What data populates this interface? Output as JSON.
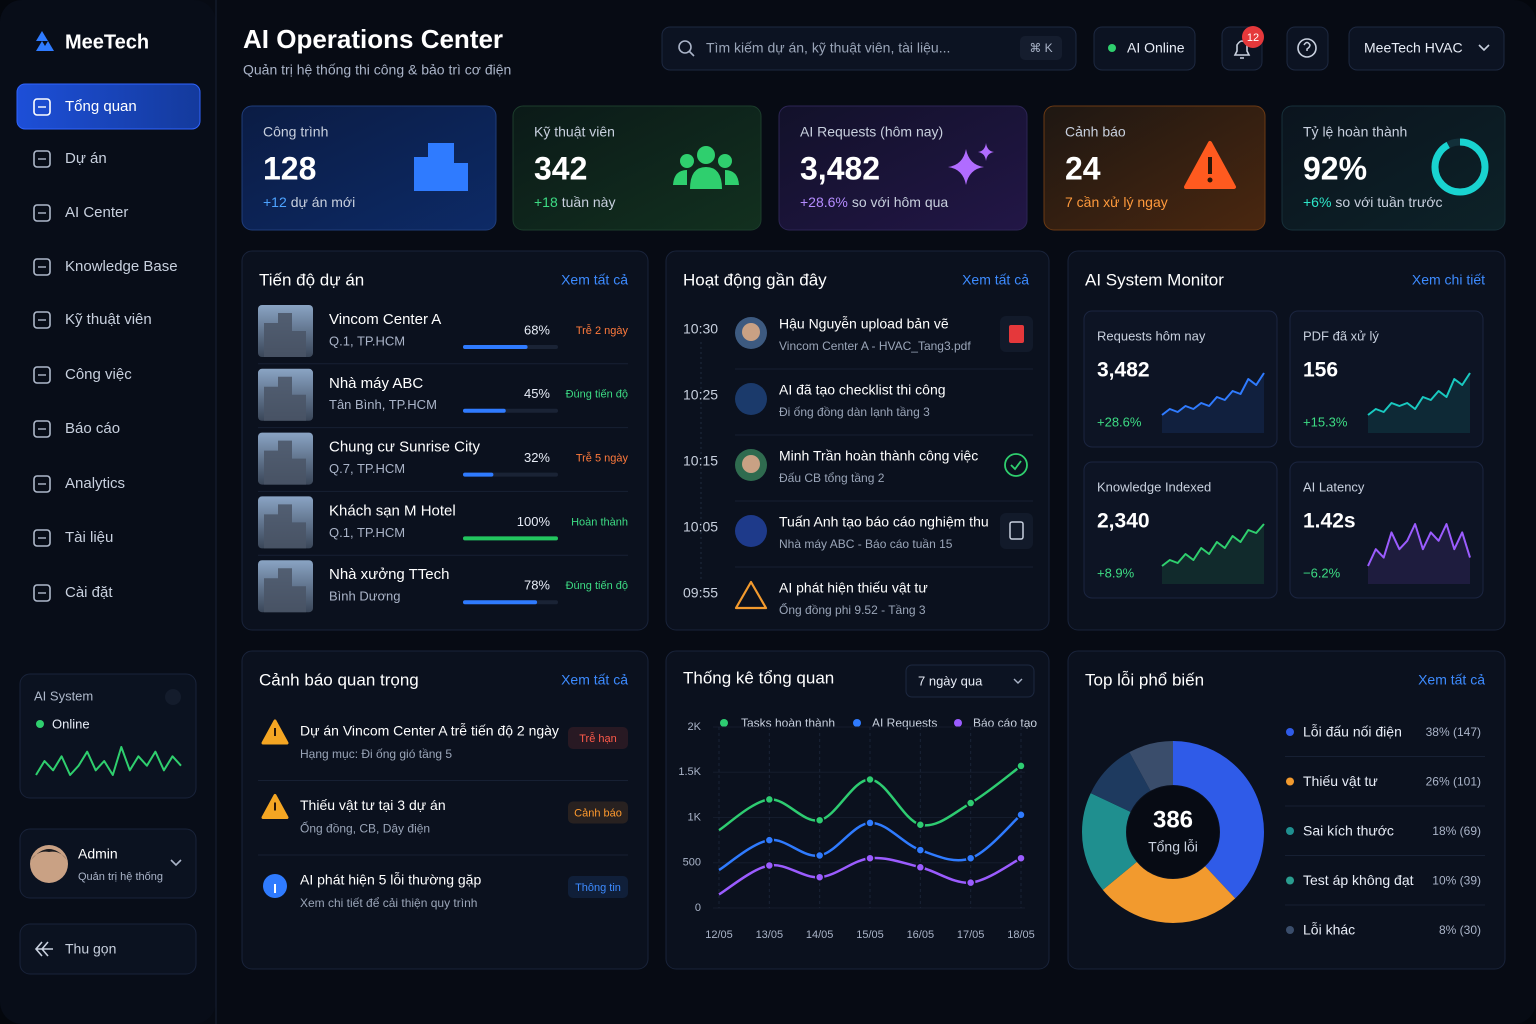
{
  "sidebar": {
    "brand": "MeeTech",
    "nav": [
      "Tổng quan",
      "Dự án",
      "AI Center",
      "Knowledge Base",
      "Kỹ thuật viên",
      "Công việc",
      "Báo cáo",
      "Analytics",
      "Tài liệu",
      "Cài đặt"
    ],
    "ai_system": {
      "title": "AI System",
      "status": "Online",
      "color": "#2fcf6e",
      "trend": [
        3,
        6,
        4,
        7,
        3,
        5,
        8,
        4,
        6,
        3,
        9,
        4,
        7,
        5,
        8,
        4,
        7,
        5
      ]
    },
    "user": {
      "name": "Admin",
      "role": "Quản trị hệ thống"
    },
    "collapse": "Thu gọn"
  },
  "header": {
    "title": "AI Operations Center",
    "subtitle": "Quản trị hệ thống thi công & bảo trì cơ điện",
    "search": "Tìm kiếm dự án, kỹ thuật viên, tài liệu...",
    "shortcut": "⌘ K",
    "ai_status": "AI Online",
    "notifications": "12",
    "account": "MeeTech HVAC"
  },
  "kpis": [
    {
      "label": "Công trình",
      "value": "128",
      "delta": "+12",
      "note": "dự án mới"
    },
    {
      "label": "Kỹ thuật viên",
      "value": "342",
      "delta": "+18",
      "note": "tuần này"
    },
    {
      "label": "AI Requests (hôm nay)",
      "value": "3,482",
      "delta": "+28.6%",
      "note": "so với hôm qua"
    },
    {
      "label": "Cảnh báo",
      "value": "24",
      "delta": "7 cần xử lý ngay"
    },
    {
      "label": "Tỷ lệ hoàn thành",
      "value": "92%",
      "delta": "+6%",
      "note": "so với tuần trước",
      "ring": 92
    }
  ],
  "projects": {
    "title": "Tiến độ dự án",
    "link": "Xem tất cả",
    "items": [
      {
        "name": "Vincom Center A",
        "location": "Q.1, TP.HCM",
        "progress": 68,
        "progress_label": "68%",
        "status": "Trễ 2 ngày",
        "color": "#2f7bff",
        "status_color": "#ff7a3c"
      },
      {
        "name": "Nhà máy ABC",
        "location": "Tân Bình, TP.HCM",
        "progress": 45,
        "progress_label": "45%",
        "status": "Đúng tiến độ",
        "color": "#2f7bff",
        "status_color": "#3ddc84"
      },
      {
        "name": "Chung cư Sunrise City",
        "location": "Q.7, TP.HCM",
        "progress": 32,
        "progress_label": "32%",
        "status": "Trễ 5 ngày",
        "color": "#2f7bff",
        "status_color": "#ff7a3c"
      },
      {
        "name": "Khách sạn M Hotel",
        "location": "Q.1, TP.HCM",
        "progress": 100,
        "progress_label": "100%",
        "status": "Hoàn thành",
        "color": "#22c55e",
        "status_color": "#3ddc84"
      },
      {
        "name": "Nhà xưởng TTech",
        "location": "Bình Dương",
        "progress": 78,
        "progress_label": "78%",
        "status": "Đúng tiến độ",
        "color": "#2f7bff",
        "status_color": "#3ddc84"
      }
    ]
  },
  "activities": {
    "title": "Hoạt động gần đây",
    "link": "Xem tất cả",
    "items": [
      {
        "time": "10:30",
        "title": "Hậu Nguyễn upload bản vẽ",
        "detail": "Vincom Center A - HVAC_Tang3.pdf"
      },
      {
        "time": "10:25",
        "title": "AI đã tạo checklist thi công",
        "detail": "Đi ống đồng dàn lạnh tầng 3"
      },
      {
        "time": "10:15",
        "title": "Minh Trần hoàn thành công việc",
        "detail": "Đấu CB tổng tầng 2"
      },
      {
        "time": "10:05",
        "title": "Tuấn Anh tạo báo cáo nghiệm thu",
        "detail": "Nhà máy ABC - Báo cáo tuần 15"
      },
      {
        "time": "09:55",
        "title": "AI phát hiện thiếu vật tư",
        "detail": "Ống đồng phi 9.52  -  Tầng 3"
      }
    ]
  },
  "monitor": {
    "title": "AI System Monitor",
    "link": "Xem chi tiết",
    "cards": [
      {
        "label": "Requests hôm nay",
        "value": "3,482",
        "delta": "+28.6%",
        "color": "#2f7bff",
        "trend": [
          2,
          3,
          2.5,
          3.5,
          3,
          4,
          3.5,
          5,
          4.5,
          6,
          5.5,
          8,
          7,
          9
        ]
      },
      {
        "label": "PDF đã xử lý",
        "value": "156",
        "delta": "+15.3%",
        "color": "#19c9c0",
        "trend": [
          2,
          3,
          2.5,
          4,
          3.5,
          4,
          3,
          5,
          4.5,
          6,
          5,
          8,
          7,
          9
        ]
      },
      {
        "label": "Knowledge Indexed",
        "value": "2,340",
        "delta": "+8.9%",
        "color": "#2fcf6e",
        "trend": [
          1,
          2,
          1.5,
          3,
          2,
          4,
          3,
          5,
          4,
          6,
          5,
          7,
          6.5,
          8
        ]
      },
      {
        "label": "AI Latency",
        "value": "1.42s",
        "delta": "−6.2%",
        "color": "#9b5cff",
        "trend": [
          3,
          4,
          3.5,
          5,
          4,
          4.5,
          5.5,
          4,
          5,
          4.5,
          5.5,
          4,
          5,
          3.5
        ]
      }
    ]
  },
  "alerts": {
    "title": "Cảnh báo quan trọng",
    "link": "Xem tất cả",
    "items": [
      {
        "title": "Dự án Vincom Center A trễ tiến độ 2 ngày",
        "detail": "Hạng mục: Đi ống gió tầng 5",
        "tag": "Trễ hạn",
        "color": "#ff5a4a"
      },
      {
        "title": "Thiếu vật tư tại 3 dự án",
        "detail": "Ống đồng, CB, Dây điện",
        "tag": "Cảnh báo",
        "color": "#ff9a2e"
      },
      {
        "title": "AI phát hiện 5 lỗi thường gặp",
        "detail": "Xem chi tiết để cải thiện quy trình",
        "tag": "Thông tin",
        "color": "#3d8bff"
      }
    ]
  },
  "chart_data": [
    {
      "type": "line",
      "title": "Thống kê tổng quan",
      "filter": "7 ngày qua",
      "x": [
        "12/05",
        "13/05",
        "14/05",
        "15/05",
        "16/05",
        "17/05",
        "18/05"
      ],
      "series": [
        {
          "name": "Tasks hoàn thành",
          "color": "#2ecc71",
          "values": [
            860,
            1200,
            970,
            1420,
            920,
            1160,
            1570
          ]
        },
        {
          "name": "AI Requests",
          "color": "#2f7bff",
          "values": [
            420,
            750,
            580,
            940,
            640,
            550,
            1030
          ]
        },
        {
          "name": "Báo cáo tạo",
          "color": "#9b5cff",
          "values": [
            150,
            470,
            340,
            550,
            450,
            280,
            550
          ]
        }
      ],
      "ylim": [
        0,
        2000
      ],
      "yticks": [
        0,
        500,
        {
          "value": 1000,
          "label": "1K"
        },
        {
          "value": 1500,
          "label": "1.5K"
        },
        {
          "value": 2000,
          "label": "2K"
        }
      ],
      "grid": true
    },
    {
      "type": "donut",
      "title": "Top lỗi phổ biến",
      "link": "Xem tất cả",
      "center_value": "386",
      "center_label": "Tổng lỗi",
      "categories": [
        "Lỗi đấu nối điện",
        "Thiếu vật tư",
        "Sai kích thước",
        "Test áp không đạt",
        "Lỗi khác"
      ],
      "values": [
        38,
        26,
        18,
        10,
        8
      ],
      "value_labels": [
        "38% (147)",
        "26% (101)",
        "18% (69)",
        "10% (39)",
        "8% (30)"
      ],
      "colors": [
        "#2f5be8",
        "#f29a2e",
        "#1f8f8f",
        "#1e3a5f",
        "#3a4d6b"
      ]
    }
  ]
}
